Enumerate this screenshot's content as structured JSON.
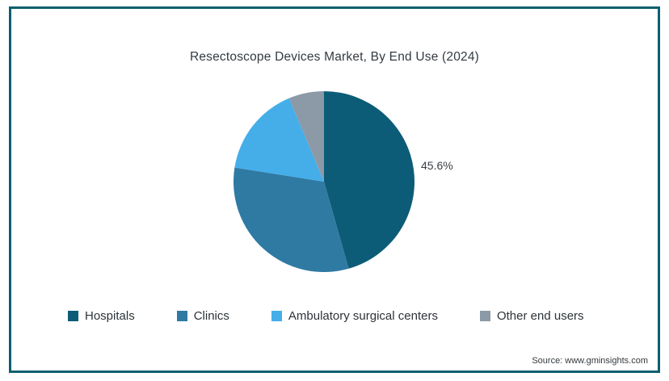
{
  "title": "Resectoscope Devices Market, By End Use (2024)",
  "percent_label": "45.6%",
  "source_text": "Source: www.gminsights.com",
  "frame_color": "#0c5f6e",
  "chart_data": {
    "type": "pie",
    "title": "Resectoscope Devices Market, By End Use (2024)",
    "categories": [
      "Hospitals",
      "Clinics",
      "Ambulatory surgical centers",
      "Other end users"
    ],
    "values": [
      45.6,
      31.9,
      16.2,
      6.3
    ],
    "colors": [
      "#0c5c77",
      "#2f7aa3",
      "#45aee9",
      "#8c99a6"
    ],
    "unit": "%",
    "start_angle_deg": 0,
    "direction": "clockwise",
    "data_labels": [
      "45.6%",
      "",
      "",
      ""
    ],
    "legend_position": "bottom",
    "annotation": "45.6% labeled outside the Hospitals slice"
  }
}
